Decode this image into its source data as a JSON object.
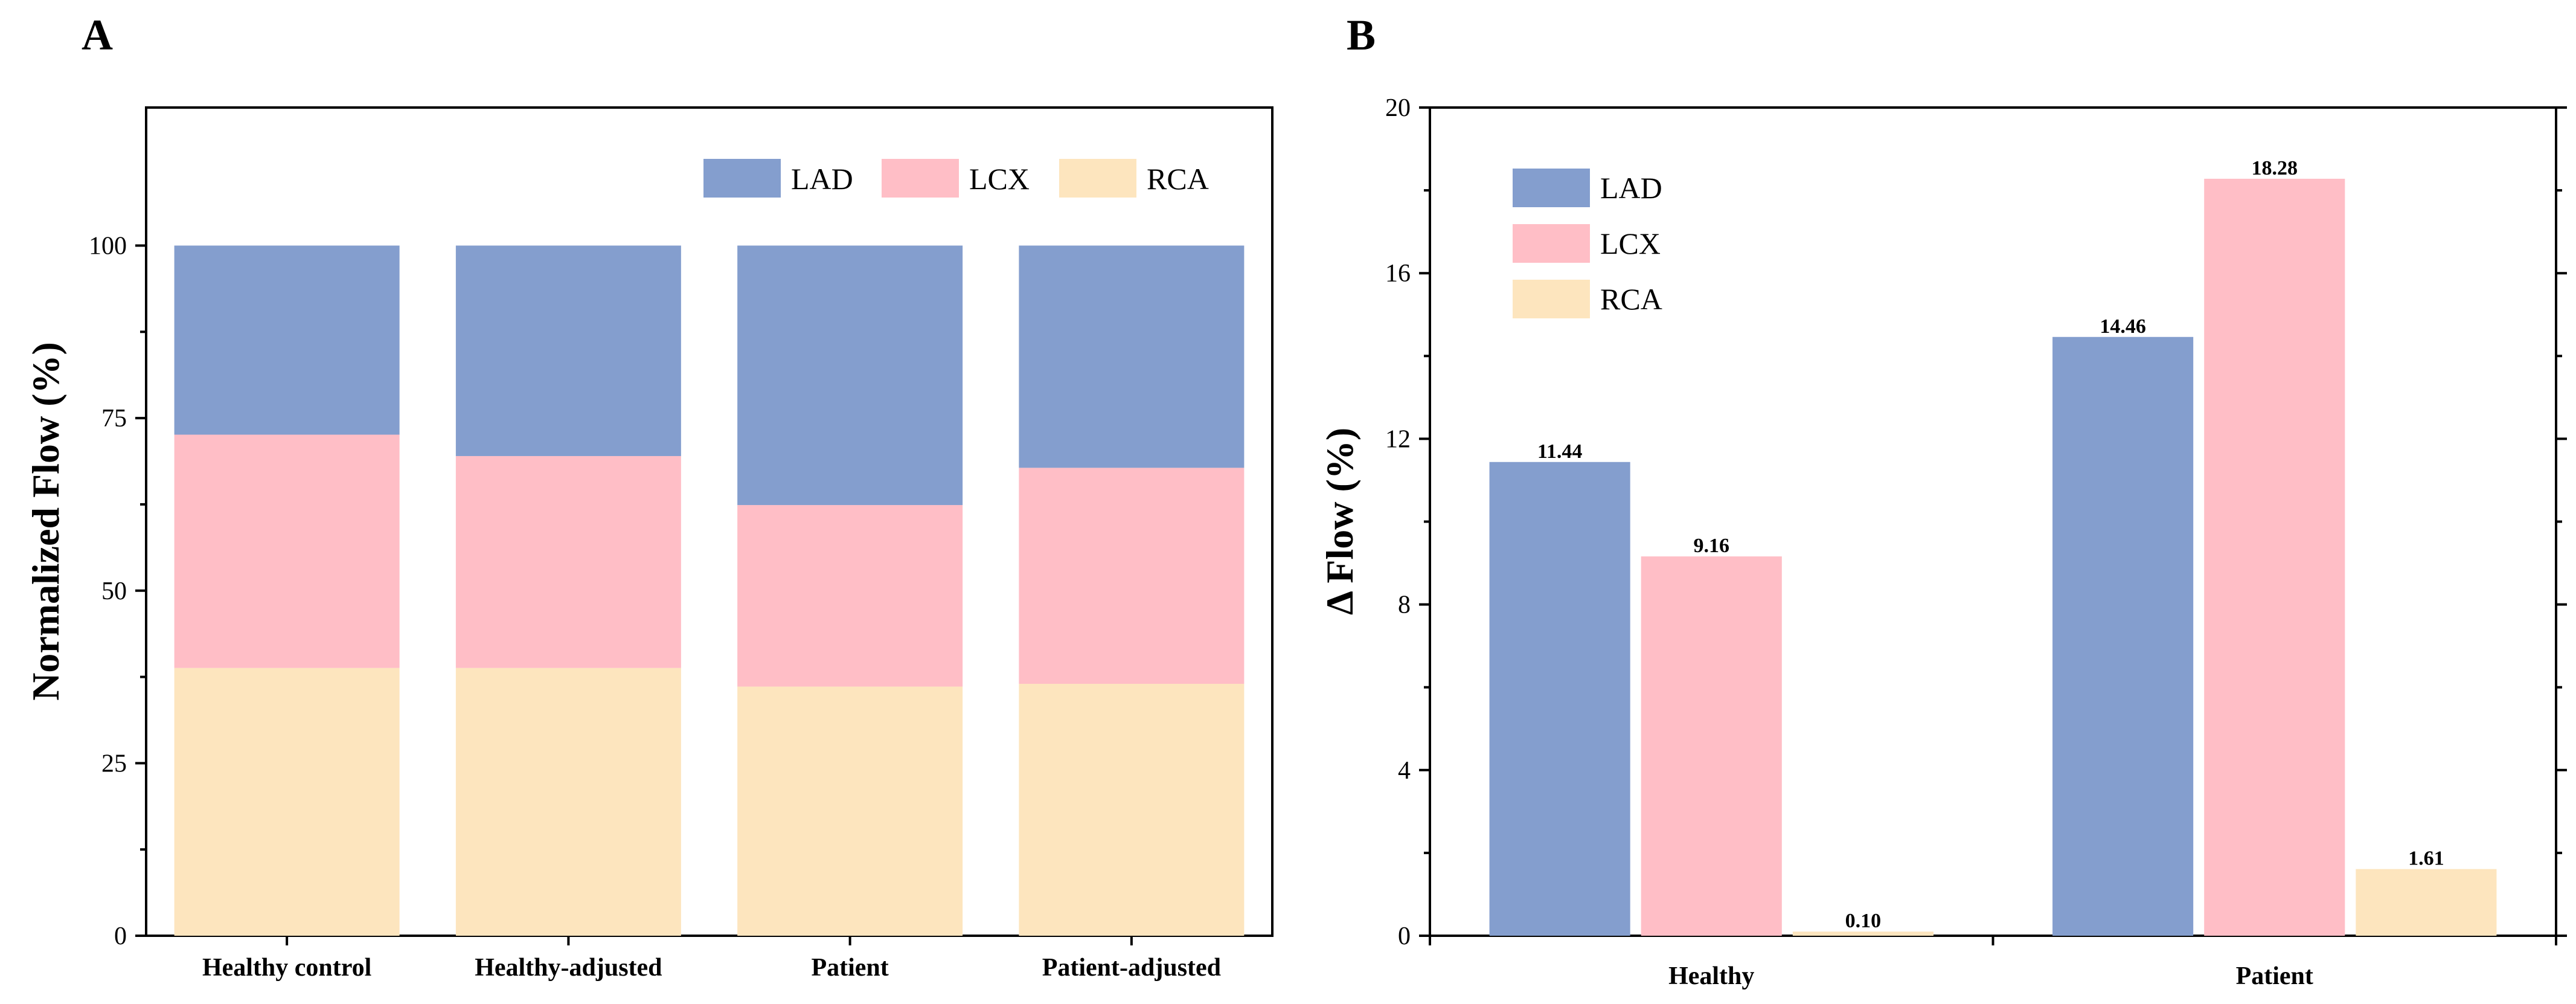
{
  "chart_data": [
    {
      "panel": "A",
      "type": "bar",
      "stacked": true,
      "categories": [
        "Healthy control",
        "Healthy-adjusted",
        "Patient",
        "Patient-adjusted"
      ],
      "ylabel": "Normalized Flow (%)",
      "xlabel": "",
      "ylim": [
        0,
        120
      ],
      "yticks": [
        0,
        25,
        50,
        75,
        100
      ],
      "grid": false,
      "legend_position": "top-right",
      "stack_order": [
        "RCA",
        "LCX",
        "LAD"
      ],
      "series": [
        {
          "name": "LAD",
          "color": "#849ECE",
          "values": [
            27.4,
            30.5,
            37.6,
            32.2
          ]
        },
        {
          "name": "LCX",
          "color": "#FFBEC6",
          "values": [
            33.8,
            30.7,
            26.3,
            31.3
          ]
        },
        {
          "name": "RCA",
          "color": "#FDE5BE",
          "values": [
            38.8,
            38.8,
            36.1,
            36.5
          ]
        }
      ]
    },
    {
      "panel": "B",
      "type": "bar",
      "stacked": false,
      "categories": [
        "Healthy",
        "Patient"
      ],
      "ylabel": "Δ Flow (%)",
      "xlabel": "",
      "ylim": [
        0,
        20
      ],
      "yticks": [
        0,
        4,
        8,
        12,
        16,
        20
      ],
      "grid": false,
      "legend_position": "top-left",
      "series": [
        {
          "name": "LAD",
          "color": "#849ECE",
          "values": [
            11.44,
            14.46
          ],
          "labels": [
            "11.44",
            "14.46"
          ]
        },
        {
          "name": "LCX",
          "color": "#FFBEC6",
          "values": [
            9.16,
            18.28
          ],
          "labels": [
            "9.16",
            "18.28"
          ]
        },
        {
          "name": "RCA",
          "color": "#FDE5BE",
          "values": [
            0.1,
            1.61
          ],
          "labels": [
            "0.10",
            "1.61"
          ]
        }
      ]
    }
  ]
}
